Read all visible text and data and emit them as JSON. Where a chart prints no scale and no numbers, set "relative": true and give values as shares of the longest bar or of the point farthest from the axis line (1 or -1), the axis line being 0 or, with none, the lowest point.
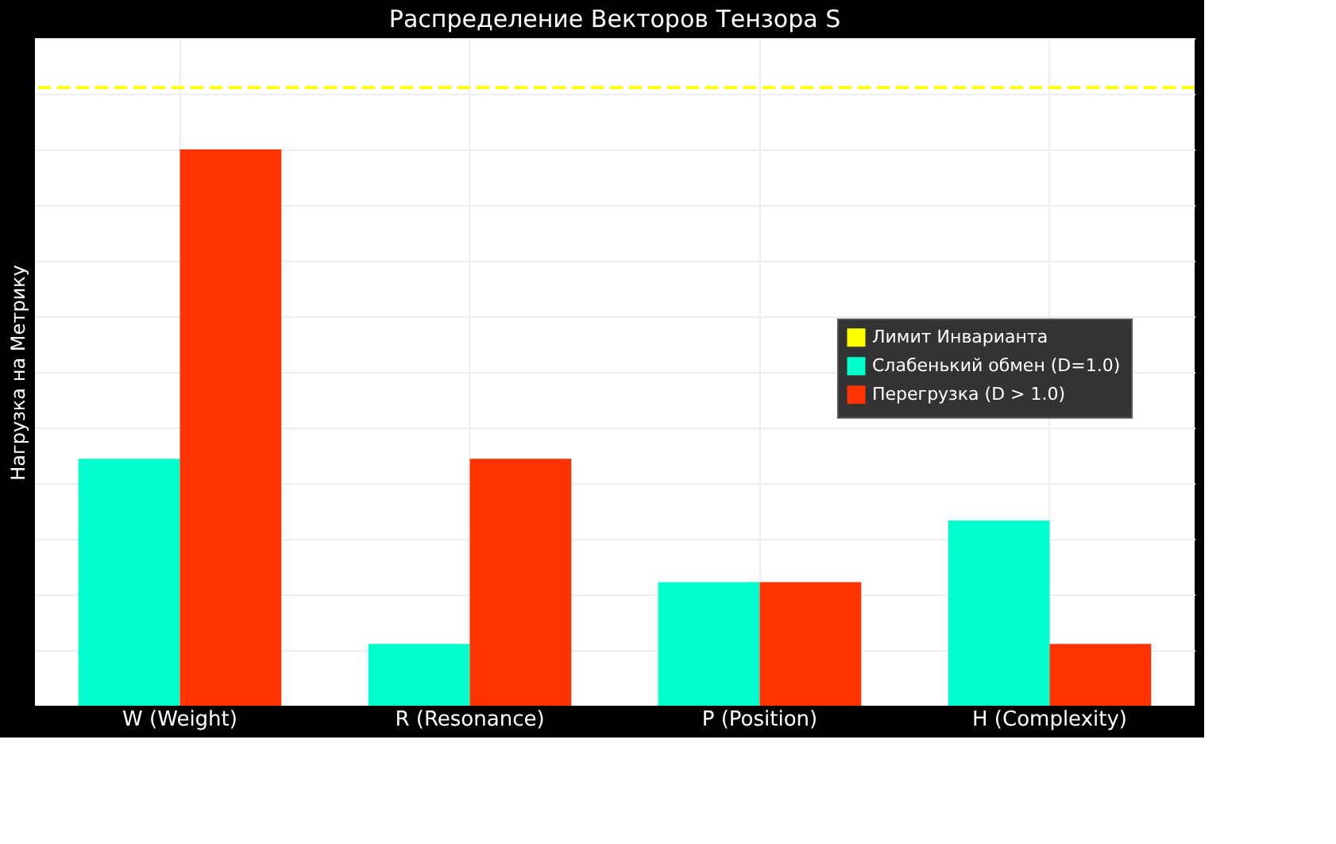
{
  "chart_data": {
    "type": "bar",
    "title": "Распределение Векторов Тензора S",
    "ylabel": "Нагрузка на Метрику",
    "categories": [
      "W (Weight)",
      "R (Resonance)",
      "P (Position)",
      "H (Complexity)"
    ],
    "relative": true,
    "series": [
      {
        "name": "Слабенький обмен (D=1.0)",
        "color": "#00ffcc",
        "values": [
          0.444,
          0.111,
          0.222,
          0.333
        ]
      },
      {
        "name": "Перегрузка (D > 1.0)",
        "color": "#ff3300",
        "values": [
          1,
          0.444,
          0.222,
          0.111
        ]
      }
    ],
    "ref_lines": [
      {
        "axis": "y",
        "value": 1.111,
        "label": "Лимит Инварианта",
        "color": "#ffff00",
        "line_style": "dashed"
      }
    ],
    "grid": true,
    "legend": "right"
  }
}
